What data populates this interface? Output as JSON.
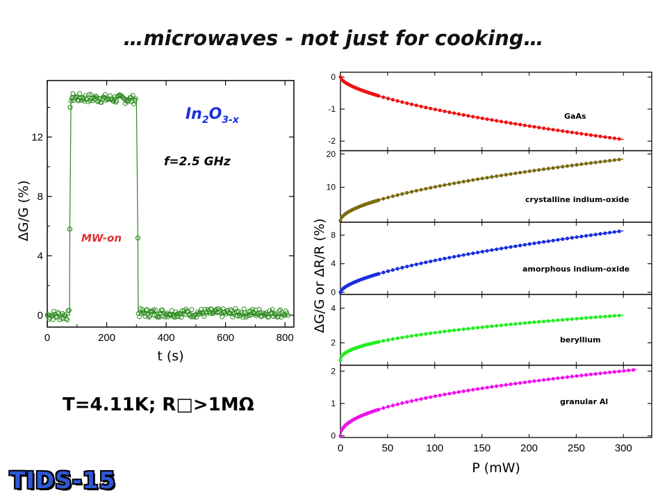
{
  "page": {
    "title": "…microwaves - not just for cooking…",
    "conditions": "T=4.11K; R□>1MΩ",
    "logo": "TIDS-15"
  },
  "colors": {
    "left_series": "#2a8a1c",
    "GaAs": "#ee1111",
    "crystalline": "#7a6b12",
    "amorphous": "#1a2ee0",
    "beryllium": "#22ee22",
    "granular": "#ee11ee"
  },
  "chart_data": [
    {
      "type": "line",
      "xlabel": "t (s)",
      "ylabel": "ΔG/G (%)",
      "xlim": [
        0,
        830
      ],
      "ylim": [
        -0.8,
        15.8
      ],
      "xticks": [
        0,
        200,
        400,
        600,
        800
      ],
      "yticks": [
        0,
        4,
        8,
        12
      ],
      "annotations": {
        "material": "In",
        "sub1": "2",
        "mid": "O",
        "sub2": "3-x",
        "freq": "f=2.5 GHz",
        "mw": "MW-on"
      },
      "series": [
        {
          "x": [
            0,
            75,
            76,
            80,
            300,
            305,
            306,
            810
          ],
          "y": [
            0,
            0,
            5.8,
            14.8,
            14.6,
            5.2,
            0.2,
            0
          ]
        }
      ]
    },
    {
      "type": "line",
      "stacked_panels": true,
      "xlabel": "P (mW)",
      "ylabel": "ΔG/G or ΔR/R (%)",
      "xlim": [
        0,
        330
      ],
      "xticks": [
        0,
        50,
        100,
        150,
        200,
        250,
        300
      ],
      "panels": [
        {
          "name": "GaAs",
          "label": "GaAs",
          "ylim": [
            -2.3,
            0.15
          ],
          "yticks": [
            0,
            -1,
            -2
          ],
          "ytick_labels": [
            "0",
            "-1",
            "-2"
          ],
          "x_end": 300,
          "y_end": -1.95,
          "sign": -1,
          "power": 0.6
        },
        {
          "name": "crystalline",
          "label": "crystalline indium-oxide",
          "ylim": [
            -0.5,
            21
          ],
          "yticks": [
            10,
            20
          ],
          "ytick_labels": [
            "10",
            "20"
          ],
          "x_end": 300,
          "y_end": 18.5,
          "sign": 1,
          "power": 0.55
        },
        {
          "name": "amorphous",
          "label": "amorphous indium-oxide",
          "ylim": [
            -0.3,
            9.8
          ],
          "yticks": [
            0,
            4,
            8
          ],
          "ytick_labels": [
            "0",
            "4",
            "8"
          ],
          "x_end": 300,
          "y_end": 8.6,
          "sign": 1,
          "power": 0.6
        },
        {
          "name": "beryllium",
          "label": "beryllium",
          "ylim": [
            0.7,
            4.8
          ],
          "yticks": [
            2,
            4
          ],
          "ytick_labels": [
            "2",
            "4"
          ],
          "x_end": 300,
          "y_end": 3.6,
          "sign": 1,
          "power": 0.45,
          "y_start": 1.0
        },
        {
          "name": "granular",
          "label": "granular Al",
          "ylim": [
            -0.05,
            2.18
          ],
          "yticks": [
            0,
            1,
            2
          ],
          "ytick_labels": [
            "0",
            "1",
            "2"
          ],
          "x_end": 315,
          "y_end": 2.05,
          "sign": 1,
          "power": 0.45
        }
      ]
    }
  ]
}
